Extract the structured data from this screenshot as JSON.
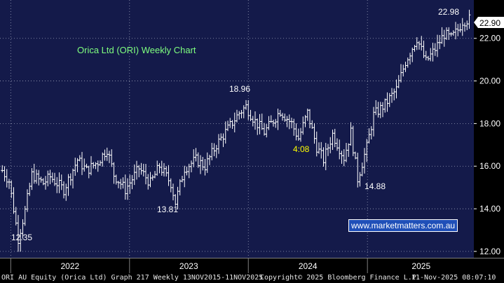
{
  "chart_data": {
    "type": "ohlc",
    "title": "Orica Ltd (ORI) Weekly Chart",
    "y_ticks": [
      12,
      14,
      16,
      18,
      20,
      22
    ],
    "y_tick_labels": [
      "12.00",
      "14.00",
      "16.00",
      "18.00",
      "20.00",
      "22.00"
    ],
    "ylim": [
      11.7,
      23.8
    ],
    "year_labels": [
      "2022",
      "2023",
      "2024",
      "2025"
    ],
    "last_price": "22.90",
    "annotations": [
      {
        "text": "12.35",
        "value": 12.35
      },
      {
        "text": "13.81",
        "value": 13.81
      },
      {
        "text": "18.96",
        "value": 18.96
      },
      {
        "text": "14.88",
        "value": 14.88
      },
      {
        "text": "22.98",
        "value": 22.98
      },
      {
        "text": "4:08",
        "value": null
      }
    ],
    "anchors": [
      [
        "2021-12-06",
        15.8
      ],
      [
        "2021-12-27",
        15.3
      ],
      [
        "2022-01-10",
        14.0
      ],
      [
        "2022-01-24",
        12.6
      ],
      [
        "2022-02-14",
        13.9
      ],
      [
        "2022-03-07",
        15.6
      ],
      [
        "2022-04-11",
        15.2
      ],
      [
        "2022-05-02",
        15.5
      ],
      [
        "2022-06-13",
        14.9
      ],
      [
        "2022-07-25",
        16.3
      ],
      [
        "2022-08-22",
        15.8
      ],
      [
        "2022-09-26",
        16.2
      ],
      [
        "2022-10-24",
        16.8
      ],
      [
        "2022-11-14",
        15.6
      ],
      [
        "2022-12-19",
        14.9
      ],
      [
        "2023-01-30",
        15.9
      ],
      [
        "2023-03-06",
        15.2
      ],
      [
        "2023-04-03",
        16.0
      ],
      [
        "2023-05-08",
        15.2
      ],
      [
        "2023-05-22",
        14.3
      ],
      [
        "2023-06-19",
        15.9
      ],
      [
        "2023-07-24",
        16.3
      ],
      [
        "2023-08-21",
        16.0
      ],
      [
        "2023-09-25",
        17.0
      ],
      [
        "2023-11-06",
        17.9
      ],
      [
        "2023-12-04",
        18.5
      ],
      [
        "2023-12-25",
        18.8
      ],
      [
        "2024-01-22",
        18.1
      ],
      [
        "2024-02-19",
        17.6
      ],
      [
        "2024-03-11",
        18.0
      ],
      [
        "2024-04-08",
        18.6
      ],
      [
        "2024-05-13",
        18.0
      ],
      [
        "2024-06-03",
        17.3
      ],
      [
        "2024-07-01",
        18.5
      ],
      [
        "2024-07-29",
        16.9
      ],
      [
        "2024-08-19",
        16.3
      ],
      [
        "2024-09-16",
        17.5
      ],
      [
        "2024-10-21",
        16.4
      ],
      [
        "2024-11-11",
        17.6
      ],
      [
        "2024-12-02",
        15.4
      ],
      [
        "2024-12-30",
        16.9
      ],
      [
        "2025-01-20",
        18.4
      ],
      [
        "2025-02-24",
        18.9
      ],
      [
        "2025-03-31",
        19.6
      ],
      [
        "2025-04-28",
        20.9
      ],
      [
        "2025-06-02",
        22.0
      ],
      [
        "2025-06-30",
        20.9
      ],
      [
        "2025-07-28",
        21.5
      ],
      [
        "2025-08-25",
        22.2
      ],
      [
        "2025-09-15",
        22.0
      ],
      [
        "2025-10-06",
        22.4
      ],
      [
        "2025-10-20",
        22.8
      ],
      [
        "2025-11-10",
        22.9
      ]
    ],
    "grid": true,
    "series_color": "#ffffff"
  },
  "footer": {
    "left": "ORI AU Equity (Orica Ltd) Graph 217 Weekly 13NOV2015-11NOV2025",
    "middle": "Copyright© 2025 Bloomberg Finance L.P.",
    "right": "11-Nov-2025 08:07:10"
  },
  "watermark": "www.marketmatters.com.au",
  "colors": {
    "plot_bg": "#141a4a",
    "grid": "#9aa0b8",
    "title": "#7fff7f",
    "annotation": "#ffffff",
    "time_label": "#ffff00",
    "price_flag": "#ffffff"
  }
}
